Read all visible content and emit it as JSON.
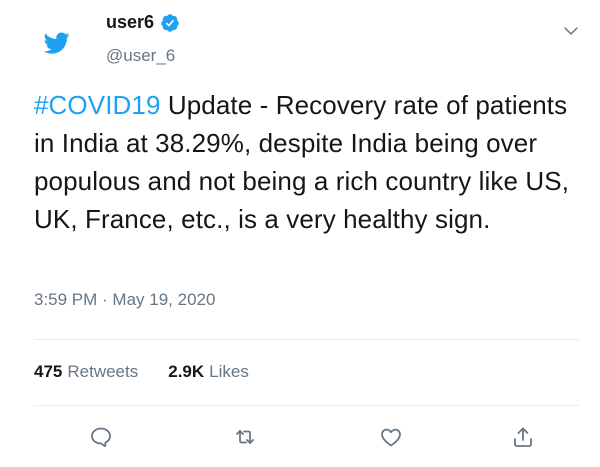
{
  "user": {
    "name": "user6",
    "handle": "@user_6"
  },
  "tweet": {
    "hashtag": "#COVID19",
    "text": " Update - Recovery rate of patients in India at 38.29%, despite India being over populous and not being a rich country like US, UK, France, etc., is a very healthy sign.",
    "timestamp": "3:59 PM · May 19, 2020"
  },
  "stats": {
    "retweets_count": "475",
    "retweets_label": "Retweets",
    "likes_count": "2.9K",
    "likes_label": "Likes"
  },
  "colors": {
    "brand": "#1da1f2",
    "muted": "#657786",
    "text": "#14171a"
  },
  "icons": {
    "avatar": "twitter-bird-icon",
    "verified": "verified-badge-icon",
    "menu": "chevron-down-icon",
    "actions": [
      "reply-icon",
      "retweet-icon",
      "like-icon",
      "share-icon"
    ]
  }
}
